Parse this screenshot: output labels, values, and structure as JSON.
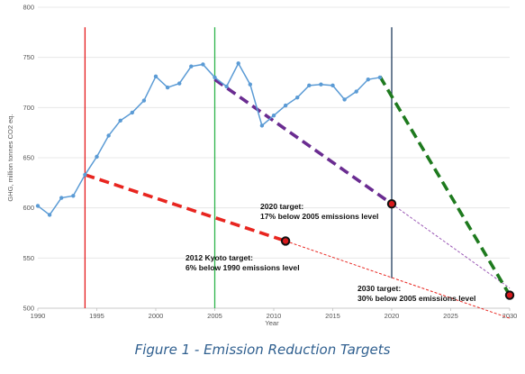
{
  "chart_data": {
    "type": "line",
    "xlabel": "Year",
    "ylabel": "GHG, million tonnes CO2 eq.",
    "xlim": [
      1990,
      2030
    ],
    "ylim": [
      500,
      800
    ],
    "xticks": [
      1990,
      1995,
      2000,
      2005,
      2010,
      2015,
      2020,
      2025,
      2030
    ],
    "yticks": [
      500,
      550,
      600,
      650,
      700,
      750,
      800
    ],
    "grid": "horizontal",
    "series": [
      {
        "role": "historical emissions",
        "color": "#5b9bd5",
        "x": [
          1990,
          1991,
          1992,
          1993,
          1994,
          1995,
          1996,
          1997,
          1998,
          1999,
          2000,
          2001,
          2002,
          2003,
          2004,
          2005,
          2006,
          2007,
          2008,
          2009,
          2010,
          2011,
          2012,
          2013,
          2014,
          2015,
          2016,
          2017,
          2018,
          2019
        ],
        "y": [
          602,
          593,
          610,
          612,
          633,
          651,
          672,
          687,
          695,
          707,
          731,
          720,
          724,
          741,
          743,
          730,
          721,
          744,
          723,
          682,
          692,
          702,
          710,
          722,
          723,
          722,
          708,
          716,
          728,
          730
        ]
      }
    ],
    "vertical_lines": [
      {
        "x": 1994,
        "color": "#e41a1c",
        "y_from": 500,
        "y_to": 780
      },
      {
        "x": 2005,
        "color": "#2db34a",
        "y_from": 500,
        "y_to": 780
      },
      {
        "x": 2020,
        "color": "#1f3b5c",
        "y_from": 530,
        "y_to": 780
      }
    ],
    "trend_lines": [
      {
        "color": "#e8251f",
        "style": "dashed-bold",
        "x": [
          1994,
          2011
        ],
        "y": [
          633,
          567
        ]
      },
      {
        "color": "#e8251f",
        "style": "dashed-thin",
        "x": [
          2011,
          2030
        ],
        "y": [
          567,
          490
        ]
      },
      {
        "color": "#6a2c91",
        "style": "dashed-bold",
        "x": [
          2005,
          2020
        ],
        "y": [
          728,
          604
        ]
      },
      {
        "color": "#9b59b6",
        "style": "dashed-thin",
        "x": [
          2020,
          2030
        ],
        "y": [
          604,
          520
        ]
      },
      {
        "color": "#1e7a1e",
        "style": "dashed-bold",
        "x": [
          2019,
          2030
        ],
        "y": [
          731,
          513
        ]
      }
    ],
    "target_points": [
      {
        "x": 2011,
        "y": 567
      },
      {
        "x": 2020,
        "y": 604
      },
      {
        "x": 2030,
        "y": 513
      }
    ],
    "annotations": [
      {
        "line1": "2020 target:",
        "line2": "17%  below 2005 emissions level"
      },
      {
        "line1": "2012 Kyoto target:",
        "line2": "6%  below 1990 emissions level"
      },
      {
        "line1": "2030 target:",
        "line2": "30%  below 2005 emissions level"
      }
    ]
  },
  "caption": "Figure 1 - Emission Reduction Targets"
}
